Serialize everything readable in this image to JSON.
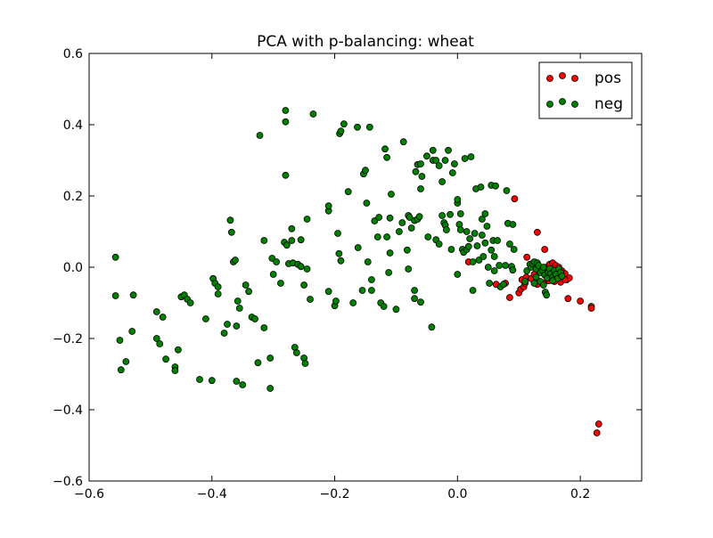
{
  "chart_data": {
    "type": "scatter",
    "title": "PCA with p-balancing: wheat",
    "xlabel": "",
    "ylabel": "",
    "xlim": [
      -0.6,
      0.3
    ],
    "ylim": [
      -0.6,
      0.6
    ],
    "xticks": [
      -0.6,
      -0.4,
      -0.2,
      0.0,
      0.2
    ],
    "yticks": [
      -0.6,
      -0.4,
      -0.2,
      0.0,
      0.2,
      0.4,
      0.6
    ],
    "xtick_labels": [
      "−0.6",
      "−0.4",
      "−0.2",
      "0.0",
      "0.2"
    ],
    "ytick_labels": [
      "−0.6",
      "−0.4",
      "−0.2",
      "0.0",
      "0.2",
      "0.4",
      "0.6"
    ],
    "grid": false,
    "legend_position": "top-right",
    "series": [
      {
        "name": "pos",
        "color": "#ff0000",
        "points": [
          [
            0.093,
            0.192
          ],
          [
            0.13,
            0.098
          ],
          [
            0.113,
            0.028
          ],
          [
            0.142,
            0.05
          ],
          [
            0.018,
            0.015
          ],
          [
            0.063,
            -0.048
          ],
          [
            0.078,
            -0.045
          ],
          [
            0.085,
            -0.085
          ],
          [
            0.1,
            -0.072
          ],
          [
            0.103,
            -0.062
          ],
          [
            0.108,
            -0.055
          ],
          [
            0.11,
            -0.045
          ],
          [
            0.105,
            -0.035
          ],
          [
            0.112,
            -0.028
          ],
          [
            0.12,
            -0.032
          ],
          [
            0.125,
            -0.02
          ],
          [
            0.132,
            -0.01
          ],
          [
            0.138,
            -0.005
          ],
          [
            0.145,
            0.0
          ],
          [
            0.15,
            0.008
          ],
          [
            0.155,
            0.012
          ],
          [
            0.16,
            0.005
          ],
          [
            0.165,
            0.0
          ],
          [
            0.17,
            -0.01
          ],
          [
            0.175,
            -0.018
          ],
          [
            0.178,
            -0.035
          ],
          [
            0.182,
            -0.03
          ],
          [
            0.148,
            -0.038
          ],
          [
            0.158,
            -0.04
          ],
          [
            0.168,
            -0.042
          ],
          [
            0.13,
            -0.048
          ],
          [
            0.14,
            -0.045
          ],
          [
            0.152,
            -0.025
          ],
          [
            0.162,
            -0.02
          ],
          [
            0.175,
            -0.035
          ],
          [
            0.18,
            -0.088
          ],
          [
            0.2,
            -0.095
          ],
          [
            0.218,
            -0.11
          ],
          [
            0.218,
            -0.115
          ],
          [
            0.23,
            -0.44
          ],
          [
            0.227,
            -0.465
          ]
        ]
      },
      {
        "name": "neg",
        "color": "#008000",
        "points": [
          [
            -0.557,
            0.028
          ],
          [
            -0.557,
            -0.08
          ],
          [
            -0.55,
            -0.205
          ],
          [
            -0.548,
            -0.288
          ],
          [
            -0.54,
            -0.265
          ],
          [
            -0.53,
            -0.18
          ],
          [
            -0.528,
            -0.078
          ],
          [
            -0.49,
            -0.125
          ],
          [
            -0.49,
            -0.2
          ],
          [
            -0.485,
            -0.215
          ],
          [
            -0.48,
            -0.14
          ],
          [
            -0.475,
            -0.258
          ],
          [
            -0.46,
            -0.28
          ],
          [
            -0.46,
            -0.29
          ],
          [
            -0.455,
            -0.232
          ],
          [
            -0.45,
            -0.083
          ],
          [
            -0.445,
            -0.078
          ],
          [
            -0.44,
            -0.09
          ],
          [
            -0.435,
            -0.1
          ],
          [
            -0.42,
            -0.315
          ],
          [
            -0.41,
            -0.145
          ],
          [
            -0.4,
            -0.318
          ],
          [
            -0.398,
            -0.032
          ],
          [
            -0.395,
            -0.045
          ],
          [
            -0.39,
            -0.055
          ],
          [
            -0.39,
            -0.075
          ],
          [
            -0.38,
            -0.185
          ],
          [
            -0.375,
            -0.16
          ],
          [
            -0.37,
            0.132
          ],
          [
            -0.368,
            0.098
          ],
          [
            -0.365,
            0.015
          ],
          [
            -0.362,
            0.02
          ],
          [
            -0.36,
            -0.165
          ],
          [
            -0.36,
            -0.32
          ],
          [
            -0.358,
            -0.095
          ],
          [
            -0.355,
            -0.115
          ],
          [
            -0.35,
            -0.33
          ],
          [
            -0.345,
            -0.05
          ],
          [
            -0.34,
            -0.068
          ],
          [
            -0.335,
            -0.14
          ],
          [
            -0.33,
            -0.145
          ],
          [
            -0.325,
            -0.268
          ],
          [
            -0.322,
            0.37
          ],
          [
            -0.315,
            -0.17
          ],
          [
            -0.315,
            0.075
          ],
          [
            -0.305,
            -0.34
          ],
          [
            -0.305,
            -0.255
          ],
          [
            -0.302,
            0.025
          ],
          [
            -0.3,
            -0.02
          ],
          [
            -0.295,
            0.015
          ],
          [
            -0.288,
            -0.045
          ],
          [
            -0.282,
            0.07
          ],
          [
            -0.28,
            0.258
          ],
          [
            -0.28,
            0.408
          ],
          [
            -0.28,
            0.44
          ],
          [
            -0.278,
            0.062
          ],
          [
            -0.275,
            0.01
          ],
          [
            -0.27,
            0.075
          ],
          [
            -0.27,
            0.108
          ],
          [
            -0.268,
            0.012
          ],
          [
            -0.265,
            -0.225
          ],
          [
            -0.262,
            -0.24
          ],
          [
            -0.26,
            0.008
          ],
          [
            -0.255,
            0.002
          ],
          [
            -0.255,
            0.077
          ],
          [
            -0.25,
            -0.05
          ],
          [
            -0.25,
            -0.255
          ],
          [
            -0.248,
            -0.27
          ],
          [
            -0.245,
            -0.005
          ],
          [
            -0.245,
            0.135
          ],
          [
            -0.24,
            -0.09
          ],
          [
            -0.235,
            0.43
          ],
          [
            -0.21,
            0.158
          ],
          [
            -0.21,
            0.172
          ],
          [
            -0.21,
            -0.068
          ],
          [
            -0.2,
            -0.108
          ],
          [
            -0.198,
            -0.095
          ],
          [
            -0.195,
            0.095
          ],
          [
            -0.193,
            0.038
          ],
          [
            -0.192,
            0.375
          ],
          [
            -0.19,
            0.382
          ],
          [
            -0.19,
            0.018
          ],
          [
            -0.185,
            0.402
          ],
          [
            -0.178,
            0.212
          ],
          [
            -0.17,
            -0.1
          ],
          [
            -0.163,
            0.393
          ],
          [
            -0.162,
            0.055
          ],
          [
            -0.155,
            -0.065
          ],
          [
            -0.153,
            0.262
          ],
          [
            -0.15,
            0.272
          ],
          [
            -0.148,
            0.18
          ],
          [
            -0.146,
            0.015
          ],
          [
            -0.143,
            0.393
          ],
          [
            -0.14,
            -0.065
          ],
          [
            -0.14,
            -0.035
          ],
          [
            -0.135,
            0.13
          ],
          [
            -0.13,
            0.085
          ],
          [
            -0.128,
            0.14
          ],
          [
            -0.125,
            -0.1
          ],
          [
            -0.12,
            -0.11
          ],
          [
            -0.118,
            0.332
          ],
          [
            -0.115,
            0.308
          ],
          [
            -0.115,
            0.085
          ],
          [
            -0.112,
            -0.015
          ],
          [
            -0.11,
            0.04
          ],
          [
            -0.11,
            0.138
          ],
          [
            -0.108,
            0.205
          ],
          [
            -0.1,
            -0.118
          ],
          [
            -0.095,
            0.1
          ],
          [
            -0.09,
            0.125
          ],
          [
            -0.088,
            0.352
          ],
          [
            -0.082,
            0.048
          ],
          [
            -0.08,
            -0.005
          ],
          [
            -0.08,
            0.145
          ],
          [
            -0.078,
            0.14
          ],
          [
            -0.075,
            0.11
          ],
          [
            -0.07,
            0.131
          ],
          [
            -0.07,
            -0.065
          ],
          [
            -0.07,
            -0.088
          ],
          [
            -0.068,
            0.268
          ],
          [
            -0.065,
            0.288
          ],
          [
            -0.065,
            0.135
          ],
          [
            -0.062,
            0.142
          ],
          [
            -0.06,
            -0.098
          ],
          [
            -0.06,
            0.29
          ],
          [
            -0.06,
            0.22
          ],
          [
            -0.058,
            0.255
          ],
          [
            -0.05,
            0.312
          ],
          [
            -0.048,
            0.085
          ],
          [
            -0.042,
            -0.168
          ],
          [
            -0.04,
            0.3
          ],
          [
            -0.04,
            0.328
          ],
          [
            -0.035,
            0.077
          ],
          [
            -0.035,
            0.3
          ],
          [
            -0.03,
            0.065
          ],
          [
            -0.03,
            0.285
          ],
          [
            -0.025,
            0.24
          ],
          [
            -0.025,
            0.145
          ],
          [
            -0.022,
            0.125
          ],
          [
            -0.02,
            0.3
          ],
          [
            -0.02,
            0.118
          ],
          [
            -0.018,
            0.105
          ],
          [
            -0.015,
            0.328
          ],
          [
            -0.012,
            0.148
          ],
          [
            -0.01,
            0.05
          ],
          [
            -0.008,
            0.265
          ],
          [
            -0.005,
            0.29
          ],
          [
            0.0,
            0.18
          ],
          [
            0.0,
            0.19
          ],
          [
            0.0,
            -0.02
          ],
          [
            0.003,
            0.12
          ],
          [
            0.005,
            0.105
          ],
          [
            0.005,
            0.15
          ],
          [
            0.008,
            0.05
          ],
          [
            0.01,
            0.042
          ],
          [
            0.012,
            0.305
          ],
          [
            0.015,
            0.05
          ],
          [
            0.015,
            0.1
          ],
          [
            0.018,
            0.058
          ],
          [
            0.02,
            0.08
          ],
          [
            0.022,
            0.31
          ],
          [
            0.025,
            0.015
          ],
          [
            0.025,
            -0.065
          ],
          [
            0.028,
            0.095
          ],
          [
            0.03,
            0.22
          ],
          [
            0.032,
            0.06
          ],
          [
            0.035,
            0.02
          ],
          [
            0.038,
            0.225
          ],
          [
            0.04,
            0.09
          ],
          [
            0.04,
            0.135
          ],
          [
            0.042,
            0.03
          ],
          [
            0.045,
            0.15
          ],
          [
            0.045,
            0.068
          ],
          [
            0.048,
            0.115
          ],
          [
            0.05,
            0.0
          ],
          [
            0.052,
            -0.045
          ],
          [
            0.055,
            0.23
          ],
          [
            0.055,
            0.048
          ],
          [
            0.058,
            0.075
          ],
          [
            0.06,
            0.03
          ],
          [
            0.06,
            -0.01
          ],
          [
            0.062,
            0.228
          ],
          [
            0.065,
            0.075
          ],
          [
            0.068,
            0.005
          ],
          [
            0.07,
            -0.055
          ],
          [
            0.075,
            -0.048
          ],
          [
            0.078,
            0.005
          ],
          [
            0.08,
            0.215
          ],
          [
            0.082,
            0.123
          ],
          [
            0.085,
            0.065
          ],
          [
            0.088,
            0.002
          ],
          [
            0.09,
            0.12
          ],
          [
            0.09,
            -0.008
          ],
          [
            0.092,
            0.05
          ],
          [
            0.11,
            -0.04
          ],
          [
            0.113,
            -0.01
          ],
          [
            0.118,
            0.008
          ],
          [
            0.12,
            0.0
          ],
          [
            0.122,
            0.01
          ],
          [
            0.125,
            0.015
          ],
          [
            0.128,
            -0.005
          ],
          [
            0.13,
            0.012
          ],
          [
            0.132,
            0.005
          ],
          [
            0.135,
            -0.015
          ],
          [
            0.138,
            -0.008
          ],
          [
            0.14,
            0.0
          ],
          [
            0.142,
            -0.022
          ],
          [
            0.143,
            -0.07
          ],
          [
            0.145,
            -0.078
          ],
          [
            0.146,
            -0.03
          ],
          [
            0.148,
            -0.015
          ],
          [
            0.15,
            -0.005
          ],
          [
            0.152,
            -0.018
          ],
          [
            0.155,
            -0.028
          ],
          [
            0.158,
            -0.01
          ],
          [
            0.16,
            -0.02
          ],
          [
            0.163,
            -0.032
          ],
          [
            0.165,
            -0.005
          ],
          [
            0.168,
            -0.015
          ],
          [
            0.135,
            -0.04
          ],
          [
            0.14,
            -0.05
          ],
          [
            0.125,
            -0.045
          ],
          [
            0.128,
            -0.028
          ],
          [
            0.155,
            -0.038
          ],
          [
            0.17,
            -0.025
          ]
        ]
      }
    ]
  }
}
